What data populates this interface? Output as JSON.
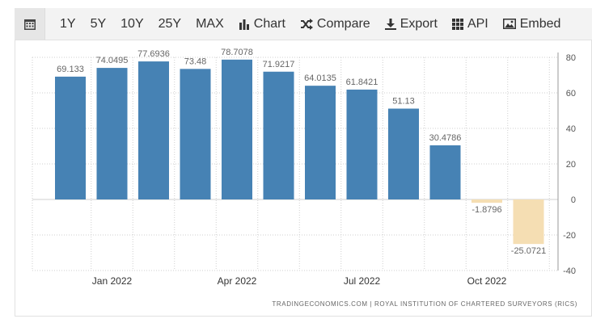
{
  "toolbar": {
    "ranges": [
      "1Y",
      "5Y",
      "10Y",
      "25Y",
      "MAX"
    ],
    "chart_label": "Chart",
    "compare_label": "Compare",
    "export_label": "Export",
    "api_label": "API",
    "embed_label": "Embed"
  },
  "source": "TRADINGECONOMICS.COM  |  ROYAL INSTITUTION OF CHARTERED SURVEYORS (RICS)",
  "colors": {
    "positive": "#4682b4",
    "negative": "#f5deb3",
    "grid": "#cfcfcf",
    "text": "#666666"
  },
  "chart_data": {
    "type": "bar",
    "values": [
      69.133,
      74.0495,
      77.6936,
      73.48,
      78.7078,
      71.9217,
      64.0135,
      61.8421,
      51.13,
      30.4786,
      -1.8796,
      -25.0721
    ],
    "labels": [
      "69.133",
      "74.0495",
      "77.6936",
      "73.48",
      "78.7078",
      "71.9217",
      "64.0135",
      "61.8421",
      "51.13",
      "30.4786",
      "-1.8796",
      "-25.0721"
    ],
    "x_ticks": [
      {
        "label": "Jan 2022",
        "index": 1
      },
      {
        "label": "Apr 2022",
        "index": 4
      },
      {
        "label": "Jul 2022",
        "index": 7
      },
      {
        "label": "Oct 2022",
        "index": 10
      }
    ],
    "y_ticks": [
      80,
      60,
      40,
      20,
      0,
      -20,
      -40
    ],
    "ylim": [
      -40,
      80
    ],
    "y_axis_position": "right",
    "grid": true
  }
}
